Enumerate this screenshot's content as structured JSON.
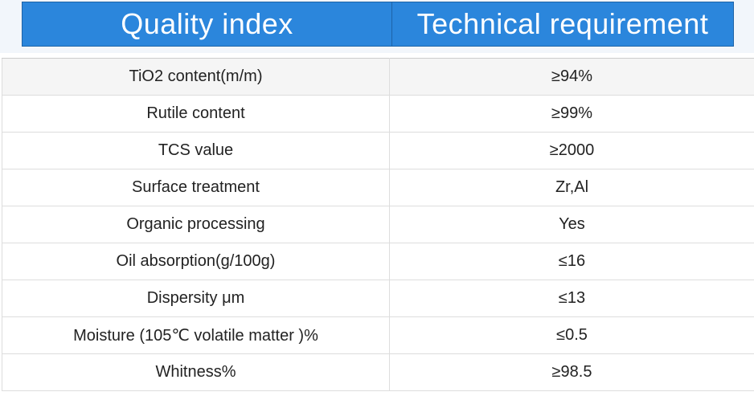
{
  "header": {
    "col1": "Quality index",
    "col2": "Technical requirement"
  },
  "rows": [
    {
      "index": "TiO2 content(m/m)",
      "requirement": "≥94%"
    },
    {
      "index": "Rutile content",
      "requirement": "≥99%"
    },
    {
      "index": "TCS value",
      "requirement": "≥2000"
    },
    {
      "index": "Surface treatment",
      "requirement": "Zr,Al"
    },
    {
      "index": "Organic processing",
      "requirement": "Yes"
    },
    {
      "index": "Oil absorption(g/100g)",
      "requirement": "≤16"
    },
    {
      "index": "Dispersity μm",
      "requirement": "≤13"
    },
    {
      "index": "Moisture (105℃ volatile matter )%",
      "requirement": "≤0.5"
    },
    {
      "index": "Whitness%",
      "requirement": "≥98.5"
    }
  ]
}
